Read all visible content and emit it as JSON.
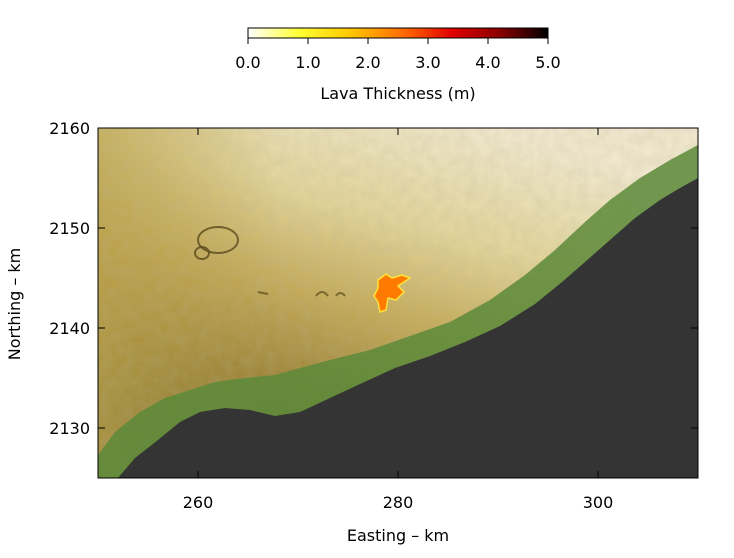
{
  "colorbar": {
    "title": "Lava Thickness (m)",
    "ticks": [
      "0.0",
      "1.0",
      "2.0",
      "3.0",
      "4.0",
      "5.0"
    ],
    "range": [
      0,
      5
    ],
    "stops": [
      "#ffffff",
      "#ffff33",
      "#ffc800",
      "#ff6a00",
      "#e00000",
      "#8a0000",
      "#000000"
    ]
  },
  "axes": {
    "xlabel": "Easting – km",
    "ylabel": "Northing – km",
    "xlim": [
      250,
      310
    ],
    "ylim": [
      2125,
      2160
    ],
    "xticks": [
      "260",
      "280",
      "300"
    ],
    "yticks": [
      "2160",
      "2150",
      "2140",
      "2130"
    ]
  },
  "terrain": {
    "ocean_color": "#343434",
    "coast_color": "#4f8a3c",
    "highland_color": "#e8deb0",
    "lowland_color": "#8a7430"
  },
  "lava_flow": {
    "fill": "#ff7a00",
    "edge": "#ffe23a"
  }
}
